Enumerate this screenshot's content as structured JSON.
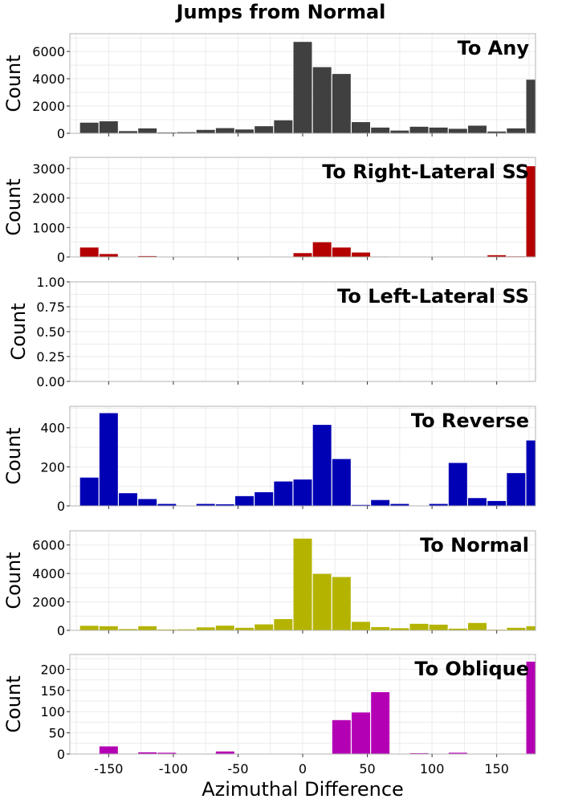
{
  "title": "Jumps from Normal",
  "xlabel": "Azimuthal Difference",
  "chart_data": [
    {
      "type": "bar",
      "title": "To Any",
      "ylabel": "Count",
      "color": "#404040",
      "xlim": [
        -180,
        180
      ],
      "ylim": [
        0,
        7300
      ],
      "yticks": [
        0,
        2000,
        4000,
        6000
      ],
      "x": [
        -165,
        -150,
        -135,
        -120,
        -105,
        -90,
        -75,
        -60,
        -45,
        -30,
        -15,
        0,
        15,
        30,
        45,
        60,
        75,
        90,
        105,
        120,
        135,
        150,
        165,
        180
      ],
      "values": [
        780,
        880,
        160,
        360,
        60,
        80,
        250,
        380,
        280,
        520,
        950,
        6700,
        4850,
        4350,
        820,
        420,
        200,
        480,
        420,
        330,
        560,
        130,
        360,
        3930
      ]
    },
    {
      "type": "bar",
      "title": "To Right-Lateral SS",
      "ylabel": "Count",
      "color": "#b40000",
      "xlim": [
        -180,
        180
      ],
      "ylim": [
        0,
        3380
      ],
      "yticks": [
        0,
        1000,
        2000,
        3000
      ],
      "x": [
        -165,
        -150,
        -135,
        -120,
        -105,
        -90,
        -75,
        -60,
        -45,
        -30,
        -15,
        0,
        15,
        30,
        45,
        60,
        75,
        90,
        105,
        120,
        135,
        150,
        165,
        180
      ],
      "values": [
        320,
        100,
        5,
        30,
        0,
        0,
        0,
        0,
        0,
        0,
        0,
        130,
        500,
        320,
        150,
        15,
        0,
        0,
        0,
        0,
        0,
        60,
        20,
        3080
      ]
    },
    {
      "type": "bar",
      "title": "To Left-Lateral SS",
      "ylabel": "Count",
      "color": "#808080",
      "xlim": [
        -180,
        180
      ],
      "ylim": [
        0,
        1.0
      ],
      "yticks": [
        0.0,
        0.25,
        0.5,
        0.75,
        1.0
      ],
      "ytick_labels": [
        "0.00",
        "0.25",
        "0.50",
        "0.75",
        "1.00"
      ],
      "x": [],
      "values": []
    },
    {
      "type": "bar",
      "title": "To Reverse",
      "ylabel": "Count",
      "color": "#0000b4",
      "xlim": [
        -180,
        180
      ],
      "ylim": [
        0,
        510
      ],
      "yticks": [
        0,
        200,
        400
      ],
      "x": [
        -165,
        -150,
        -135,
        -120,
        -105,
        -90,
        -75,
        -60,
        -45,
        -30,
        -15,
        0,
        15,
        30,
        45,
        60,
        75,
        90,
        105,
        120,
        135,
        150,
        165,
        180
      ],
      "values": [
        145,
        475,
        65,
        35,
        10,
        0,
        10,
        8,
        50,
        70,
        125,
        135,
        415,
        240,
        5,
        30,
        10,
        0,
        10,
        220,
        40,
        25,
        168,
        335
      ]
    },
    {
      "type": "bar",
      "title": "To Normal",
      "ylabel": "Count",
      "color": "#b4b400",
      "xlim": [
        -180,
        180
      ],
      "ylim": [
        0,
        7000
      ],
      "yticks": [
        0,
        2000,
        4000,
        6000
      ],
      "x": [
        -165,
        -150,
        -135,
        -120,
        -105,
        -90,
        -75,
        -60,
        -45,
        -30,
        -15,
        0,
        15,
        30,
        45,
        60,
        75,
        90,
        105,
        120,
        135,
        150,
        165,
        180
      ],
      "values": [
        320,
        290,
        90,
        290,
        60,
        70,
        210,
        330,
        180,
        420,
        790,
        6450,
        3970,
        3750,
        600,
        230,
        150,
        460,
        400,
        120,
        520,
        50,
        180,
        290
      ]
    },
    {
      "type": "bar",
      "title": "To Oblique",
      "ylabel": "Count",
      "color": "#b400b4",
      "xlim": [
        -180,
        180
      ],
      "ylim": [
        0,
        235
      ],
      "yticks": [
        0,
        50,
        100,
        150,
        200
      ],
      "x": [
        -165,
        -150,
        -135,
        -120,
        -105,
        -90,
        -75,
        -60,
        -45,
        -30,
        -15,
        0,
        15,
        30,
        45,
        60,
        75,
        90,
        105,
        120,
        135,
        150,
        165,
        180
      ],
      "values": [
        0,
        18,
        0,
        4,
        3,
        0,
        0,
        6,
        0,
        0,
        0,
        0,
        0,
        80,
        98,
        146,
        0,
        2,
        0,
        3,
        0,
        0,
        0,
        218
      ]
    }
  ],
  "xticks": [
    -150,
    -100,
    -50,
    0,
    50,
    100,
    150
  ]
}
